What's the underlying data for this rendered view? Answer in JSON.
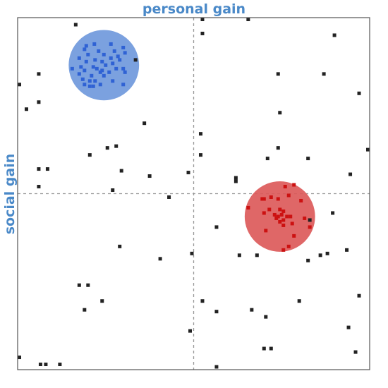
{
  "chart_data": {
    "type": "scatter",
    "xlabel": "personal gain",
    "ylabel": "social gain",
    "xlim": [
      0,
      100
    ],
    "ylim": [
      0,
      100
    ],
    "grid": false,
    "reference_lines": {
      "x": 50,
      "y": 50,
      "style": "dashed"
    },
    "colors": {
      "label": "#4a89c8",
      "axis": "#555555",
      "reference": "#9a9a9a",
      "neutral_point": "#222222",
      "blue_cluster_fill": "#7099dc",
      "blue_point": "#2f62d4",
      "red_cluster_fill": "#dc5a5a",
      "red_point": "#cc1111"
    },
    "clusters": [
      {
        "color": "blue",
        "center": [
          24.5,
          86.5
        ],
        "radius": 10,
        "points": [
          [
            21.8,
            92.5
          ],
          [
            26.5,
            92.5
          ],
          [
            19.0,
            91.0
          ],
          [
            23.0,
            90.5
          ],
          [
            27.5,
            90.5
          ],
          [
            30.0,
            91.5
          ],
          [
            20.0,
            89.5
          ],
          [
            24.5,
            89.5
          ],
          [
            28.5,
            89.0
          ],
          [
            30.5,
            90.0
          ],
          [
            17.5,
            88.5
          ],
          [
            22.0,
            88.0
          ],
          [
            26.5,
            88.5
          ],
          [
            29.0,
            88.0
          ],
          [
            19.5,
            87.5
          ],
          [
            24.0,
            87.5
          ],
          [
            27.0,
            87.0
          ],
          [
            15.5,
            85.5
          ],
          [
            18.0,
            86.0
          ],
          [
            21.5,
            86.0
          ],
          [
            25.0,
            86.5
          ],
          [
            22.5,
            85.5
          ],
          [
            28.0,
            85.5
          ],
          [
            30.0,
            85.5
          ],
          [
            19.0,
            85.0
          ],
          [
            23.5,
            84.5
          ],
          [
            26.0,
            84.5
          ],
          [
            30.5,
            84.5
          ],
          [
            17.5,
            84.0
          ],
          [
            21.0,
            83.5
          ],
          [
            24.5,
            83.5
          ],
          [
            18.5,
            82.5
          ],
          [
            20.5,
            82.0
          ],
          [
            22.0,
            82.0
          ],
          [
            27.0,
            82.0
          ],
          [
            19.0,
            81.0
          ],
          [
            20.5,
            80.5
          ],
          [
            21.5,
            80.5
          ],
          [
            23.5,
            81.0
          ],
          [
            30.0,
            81.0
          ],
          [
            24.0,
            85.0
          ],
          [
            19.5,
            92.0
          ]
        ]
      },
      {
        "color": "red",
        "center": [
          74.5,
          43.5
        ],
        "radius": 10,
        "points": [
          [
            76.0,
            52.0
          ],
          [
            78.5,
            52.5
          ],
          [
            69.5,
            48.5
          ],
          [
            70.0,
            48.5
          ],
          [
            72.0,
            49.0
          ],
          [
            74.0,
            48.5
          ],
          [
            77.0,
            49.5
          ],
          [
            80.5,
            48.0
          ],
          [
            65.5,
            46.0
          ],
          [
            71.5,
            45.5
          ],
          [
            74.5,
            45.5
          ],
          [
            75.5,
            45.0
          ],
          [
            70.0,
            44.5
          ],
          [
            73.0,
            44.0
          ],
          [
            74.0,
            43.5
          ],
          [
            75.0,
            44.0
          ],
          [
            76.5,
            43.5
          ],
          [
            77.5,
            43.5
          ],
          [
            73.5,
            43.0
          ],
          [
            75.5,
            42.5
          ],
          [
            74.5,
            42.0
          ],
          [
            81.5,
            43.0
          ],
          [
            78.0,
            41.5
          ],
          [
            75.5,
            41.0
          ],
          [
            83.0,
            40.5
          ],
          [
            70.5,
            39.5
          ],
          [
            78.5,
            38.0
          ],
          [
            77.0,
            35.0
          ],
          [
            75.5,
            34.0
          ]
        ]
      }
    ],
    "neutral_points": [
      [
        16.5,
        98.0
      ],
      [
        52.5,
        99.5
      ],
      [
        65.5,
        99.5
      ],
      [
        52.5,
        95.5
      ],
      [
        90.0,
        95.0
      ],
      [
        33.5,
        88.0
      ],
      [
        6.0,
        84.0
      ],
      [
        74.0,
        84.0
      ],
      [
        87.0,
        84.0
      ],
      [
        0.5,
        81.0
      ],
      [
        97.0,
        78.5
      ],
      [
        6.0,
        76.0
      ],
      [
        2.5,
        74.0
      ],
      [
        74.5,
        73.0
      ],
      [
        36.0,
        70.0
      ],
      [
        52.0,
        67.0
      ],
      [
        28.0,
        63.5
      ],
      [
        25.5,
        63.0
      ],
      [
        20.5,
        61.0
      ],
      [
        52.0,
        61.0
      ],
      [
        71.0,
        60.0
      ],
      [
        74.0,
        63.0
      ],
      [
        82.5,
        60.0
      ],
      [
        99.5,
        62.5
      ],
      [
        6.0,
        57.0
      ],
      [
        8.5,
        57.0
      ],
      [
        29.5,
        56.5
      ],
      [
        48.5,
        56.0
      ],
      [
        94.5,
        55.5
      ],
      [
        37.5,
        55.0
      ],
      [
        62.0,
        54.5
      ],
      [
        62.0,
        53.5
      ],
      [
        6.0,
        52.0
      ],
      [
        27.0,
        51.0
      ],
      [
        43.0,
        49.0
      ],
      [
        89.5,
        44.5
      ],
      [
        83.0,
        42.5
      ],
      [
        56.5,
        40.5
      ],
      [
        29.0,
        35.0
      ],
      [
        49.5,
        33.0
      ],
      [
        63.0,
        32.5
      ],
      [
        68.0,
        32.5
      ],
      [
        86.0,
        32.5
      ],
      [
        88.0,
        33.0
      ],
      [
        93.5,
        34.0
      ],
      [
        40.5,
        31.5
      ],
      [
        82.5,
        31.0
      ],
      [
        17.5,
        24.0
      ],
      [
        20.0,
        24.0
      ],
      [
        97.0,
        21.0
      ],
      [
        24.0,
        19.5
      ],
      [
        52.5,
        19.5
      ],
      [
        80.0,
        19.5
      ],
      [
        19.0,
        17.0
      ],
      [
        56.5,
        16.5
      ],
      [
        66.5,
        17.0
      ],
      [
        70.5,
        15.0
      ],
      [
        49.0,
        11.0
      ],
      [
        94.0,
        12.0
      ],
      [
        70.0,
        6.0
      ],
      [
        72.0,
        6.0
      ],
      [
        96.0,
        5.0
      ],
      [
        0.5,
        3.5
      ],
      [
        6.5,
        1.5
      ],
      [
        8.0,
        1.5
      ],
      [
        12.0,
        1.5
      ],
      [
        56.5,
        0.8
      ]
    ]
  }
}
